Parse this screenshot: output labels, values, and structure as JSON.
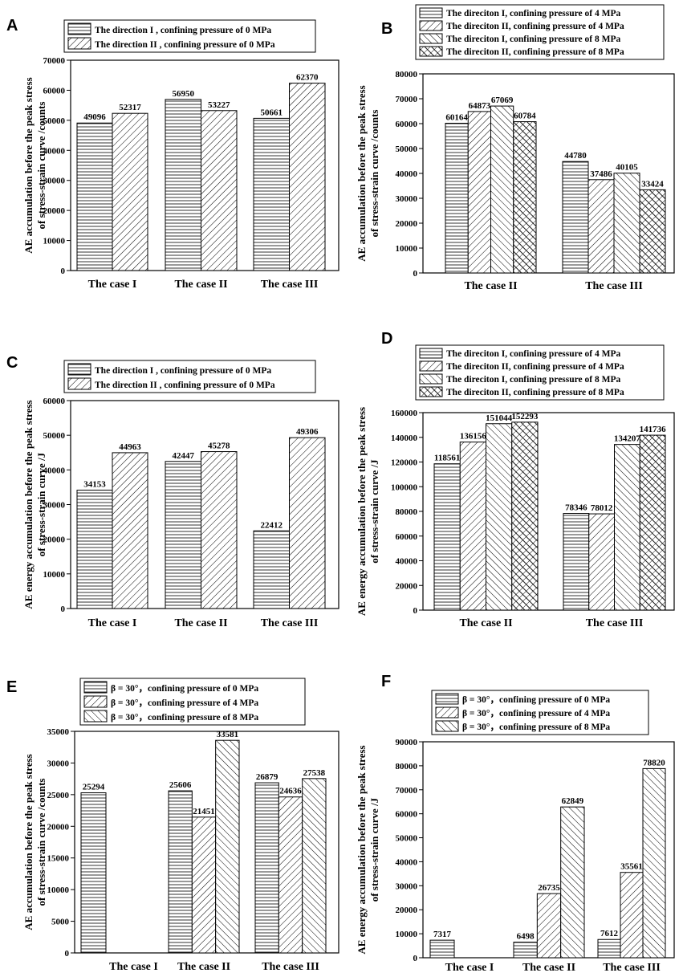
{
  "figure": {
    "colors": {
      "bar_fill": "#ffffff",
      "bar_stroke": "#000000",
      "hatch": "#000000",
      "background": "#ffffff"
    }
  },
  "chart_data": [
    {
      "panel": "A",
      "type": "bar",
      "categories": [
        "The case I",
        "The case II",
        "The case III"
      ],
      "series": [
        {
          "name": "The direction I , confining pressure of 0 MPa",
          "pattern": "horizontal",
          "values": [
            49096,
            56950,
            50661
          ]
        },
        {
          "name": "The direction II , confining pressure of 0 MPa",
          "pattern": "diag-right",
          "values": [
            52317,
            53227,
            62370
          ]
        }
      ],
      "ylabel": [
        "AE accumulation before the peak stress",
        "of stress-strain curve /counts"
      ],
      "ylim": [
        0,
        70000
      ],
      "yticks": [
        0,
        10000,
        20000,
        30000,
        40000,
        50000,
        60000,
        70000
      ],
      "legend_position": "top"
    },
    {
      "panel": "B",
      "type": "bar",
      "categories": [
        "The case II",
        "The case III"
      ],
      "series": [
        {
          "name": "The direciton I, confining pressure of 4 MPa",
          "pattern": "horizontal",
          "values": [
            60164,
            44780
          ]
        },
        {
          "name": "The direciton II, confining pressure of 4 MPa",
          "pattern": "diag-right",
          "values": [
            64873,
            37486
          ]
        },
        {
          "name": "The direciton I, confining pressure of 8 MPa",
          "pattern": "diag-left",
          "values": [
            67069,
            40105
          ]
        },
        {
          "name": "The direciton II, confining pressure of 8 MPa",
          "pattern": "cross",
          "values": [
            60784,
            33424
          ]
        }
      ],
      "ylabel": [
        "AE accumulation before the peak stress",
        "of stress-strain curve /counts"
      ],
      "ylim": [
        0,
        80000
      ],
      "yticks": [
        0,
        10000,
        20000,
        30000,
        40000,
        50000,
        60000,
        70000,
        80000
      ],
      "legend_position": "top"
    },
    {
      "panel": "C",
      "type": "bar",
      "categories": [
        "The case I",
        "The case II",
        "The case III"
      ],
      "series": [
        {
          "name": "The direction I , confining pressure of 0 MPa",
          "pattern": "horizontal",
          "values": [
            34153,
            42447,
            22412
          ]
        },
        {
          "name": "The direction II , confining pressure of 0 MPa",
          "pattern": "diag-right",
          "values": [
            44963,
            45278,
            49306
          ]
        }
      ],
      "ylabel": [
        "AE energy accumulation before the peak stress",
        "of stress-strain curve /J"
      ],
      "ylim": [
        0,
        60000
      ],
      "yticks": [
        0,
        10000,
        20000,
        30000,
        40000,
        50000,
        60000
      ],
      "legend_position": "top"
    },
    {
      "panel": "D",
      "type": "bar",
      "categories": [
        "The case II",
        "The case III"
      ],
      "series": [
        {
          "name": "The direciton I, confining pressure of 4 MPa",
          "pattern": "horizontal",
          "values": [
            118561,
            78346
          ]
        },
        {
          "name": "The direciton II, confining pressure of 4 MPa",
          "pattern": "diag-right",
          "values": [
            136156,
            78012
          ]
        },
        {
          "name": "The direciton I, confining pressure of 8 MPa",
          "pattern": "diag-left",
          "values": [
            151044,
            134207
          ]
        },
        {
          "name": "The direciton II, confining pressure of 8 MPa",
          "pattern": "cross",
          "values": [
            152293,
            141736
          ]
        }
      ],
      "ylabel": [
        "AE energy accumulation before the peak stress",
        "of stress-strain curve /J"
      ],
      "ylim": [
        0,
        160000
      ],
      "yticks": [
        0,
        20000,
        40000,
        60000,
        80000,
        100000,
        120000,
        140000,
        160000
      ],
      "legend_position": "top"
    },
    {
      "panel": "E",
      "type": "bar",
      "categories": [
        "The case I",
        "The case II",
        "The case III"
      ],
      "series": [
        {
          "name": "β = 30°，confining pressure of 0 MPa",
          "pattern": "horizontal",
          "values": [
            25294,
            25606,
            26879
          ]
        },
        {
          "name": "β = 30°，confining pressure of 4 MPa",
          "pattern": "diag-right",
          "values": [
            null,
            21451,
            24636
          ]
        },
        {
          "name": "β = 30°，confining pressure of 8 MPa",
          "pattern": "diag-left",
          "values": [
            null,
            33581,
            27538
          ]
        }
      ],
      "ylabel": [
        "AE accumulation before the peak stress",
        "of stress-strain curve /counts"
      ],
      "ylim": [
        0,
        35000
      ],
      "yticks": [
        0,
        5000,
        10000,
        15000,
        20000,
        25000,
        30000,
        35000
      ],
      "legend_position": "top"
    },
    {
      "panel": "F",
      "type": "bar",
      "categories": [
        "The case I",
        "The case II",
        "The case III"
      ],
      "series": [
        {
          "name": "β = 30°，confining pressure of 0 MPa",
          "pattern": "horizontal",
          "values": [
            7317,
            6498,
            7612
          ]
        },
        {
          "name": "β = 30°，confining pressure of 4 MPa",
          "pattern": "diag-right",
          "values": [
            null,
            26735,
            35561
          ]
        },
        {
          "name": "β = 30°，confining pressure of 8 MPa",
          "pattern": "diag-left",
          "values": [
            null,
            62849,
            78820
          ]
        }
      ],
      "ylabel": [
        "AE energy accumulation before the peak stress",
        "of stress-strain curve /J"
      ],
      "ylim": [
        0,
        90000
      ],
      "yticks": [
        0,
        10000,
        20000,
        30000,
        40000,
        50000,
        60000,
        70000,
        80000,
        90000
      ],
      "legend_position": "top"
    }
  ]
}
